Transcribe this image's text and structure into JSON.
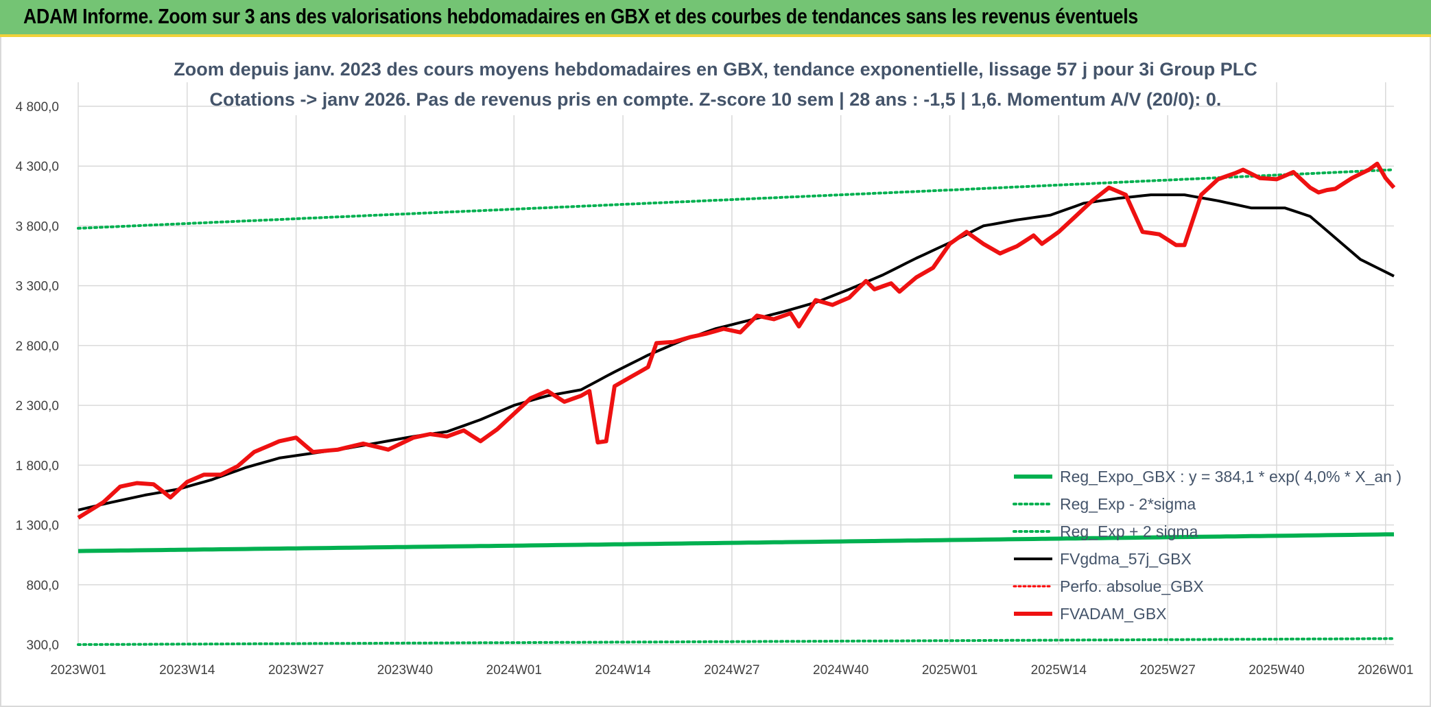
{
  "header": {
    "title": "ADAM Informe. Zoom sur 3 ans des valorisations hebdomadaires en GBX et des courbes de tendances sans les revenus éventuels"
  },
  "chart_data": {
    "type": "line",
    "title": "Zoom depuis janv. 2023 des cours moyens hebdomadaires en GBX, tendance exponentielle, lissage 57 j pour 3i Group PLC",
    "subtitle": "Cotations -> janv 2026. Pas de revenus pris en compte. Z-score 10 sem | 28 ans : -1,5 | 1,6. Momentum A/V (20/0): 0.",
    "ylim": [
      300,
      4800
    ],
    "y_ticks": [
      300,
      800,
      1300,
      1800,
      2300,
      2800,
      3300,
      3800,
      4300,
      4800
    ],
    "y_tick_labels": [
      "300,0",
      "800,0",
      "1 300,0",
      "1 800,0",
      "2 300,0",
      "2 800,0",
      "3 300,0",
      "3 800,0",
      "4 300,0",
      "4 800,0"
    ],
    "x_count": 158,
    "x_ticks": [
      0,
      13,
      26,
      39,
      52,
      65,
      78,
      91,
      104,
      117,
      130,
      143,
      156
    ],
    "x_tick_labels": [
      "2023W01",
      "2023W14",
      "2023W27",
      "2023W40",
      "2024W01",
      "2024W14",
      "2024W27",
      "2024W40",
      "2025W01",
      "2025W14",
      "2025W27",
      "2025W40",
      "2026W01"
    ],
    "grid": true,
    "legend_position": "bottom-right",
    "colors": {
      "reg_expo": "#00b050",
      "reg_minus": "#00b050",
      "reg_plus": "#00b050",
      "fvgdma": "#000000",
      "perfo": "#ff0000",
      "fvadam": "#ee1111",
      "grid": "#d9d9d9"
    },
    "series": [
      {
        "key": "reg_expo",
        "name": "Reg_Expo_GBX : y = 384,1 * exp( 4,0% *  X_an )",
        "style": "solid-thick",
        "anchors": [
          [
            0,
            1082
          ],
          [
            52,
            1127
          ],
          [
            104,
            1174
          ],
          [
            157,
            1222
          ]
        ]
      },
      {
        "key": "reg_minus",
        "name": "Reg_Exp - 2*sigma",
        "style": "dotted",
        "anchors": [
          [
            0,
            300
          ],
          [
            157,
            350
          ]
        ]
      },
      {
        "key": "reg_plus",
        "name": "Reg_Exp + 2 sigma",
        "style": "dotted",
        "anchors": [
          [
            0,
            3780
          ],
          [
            52,
            3940
          ],
          [
            104,
            4100
          ],
          [
            157,
            4270
          ]
        ]
      },
      {
        "key": "fvgdma",
        "name": "FVgdma_57j_GBX",
        "style": "solid",
        "anchors": [
          [
            0,
            1425
          ],
          [
            4,
            1490
          ],
          [
            8,
            1550
          ],
          [
            12,
            1600
          ],
          [
            16,
            1680
          ],
          [
            20,
            1780
          ],
          [
            24,
            1860
          ],
          [
            28,
            1900
          ],
          [
            32,
            1940
          ],
          [
            36,
            1990
          ],
          [
            40,
            2040
          ],
          [
            44,
            2080
          ],
          [
            48,
            2180
          ],
          [
            52,
            2300
          ],
          [
            56,
            2380
          ],
          [
            60,
            2430
          ],
          [
            64,
            2580
          ],
          [
            68,
            2720
          ],
          [
            72,
            2840
          ],
          [
            76,
            2940
          ],
          [
            80,
            3010
          ],
          [
            84,
            3080
          ],
          [
            88,
            3160
          ],
          [
            92,
            3270
          ],
          [
            96,
            3390
          ],
          [
            100,
            3530
          ],
          [
            104,
            3660
          ],
          [
            108,
            3800
          ],
          [
            112,
            3850
          ],
          [
            116,
            3890
          ],
          [
            120,
            3990
          ],
          [
            124,
            4030
          ],
          [
            128,
            4060
          ],
          [
            132,
            4060
          ],
          [
            136,
            4010
          ],
          [
            140,
            3950
          ],
          [
            144,
            3950
          ],
          [
            147,
            3880
          ],
          [
            150,
            3700
          ],
          [
            153,
            3520
          ],
          [
            157,
            3380
          ]
        ]
      },
      {
        "key": "perfo",
        "name": "Perfo. absolue_GBX",
        "style": "dotted-red",
        "anchors": []
      },
      {
        "key": "fvadam",
        "name": "FVADAM_GBX",
        "style": "solid-thick",
        "anchors": [
          [
            0,
            1360
          ],
          [
            3,
            1490
          ],
          [
            5,
            1620
          ],
          [
            7,
            1650
          ],
          [
            9,
            1640
          ],
          [
            11,
            1530
          ],
          [
            13,
            1660
          ],
          [
            15,
            1720
          ],
          [
            17,
            1720
          ],
          [
            19,
            1790
          ],
          [
            21,
            1910
          ],
          [
            24,
            2000
          ],
          [
            26,
            2030
          ],
          [
            28,
            1910
          ],
          [
            31,
            1930
          ],
          [
            34,
            1980
          ],
          [
            37,
            1930
          ],
          [
            40,
            2030
          ],
          [
            42,
            2060
          ],
          [
            44,
            2040
          ],
          [
            46,
            2090
          ],
          [
            48,
            2000
          ],
          [
            50,
            2100
          ],
          [
            52,
            2230
          ],
          [
            54,
            2360
          ],
          [
            56,
            2420
          ],
          [
            58,
            2330
          ],
          [
            60,
            2380
          ],
          [
            61,
            2420
          ],
          [
            62,
            1990
          ],
          [
            63,
            2000
          ],
          [
            64,
            2460
          ],
          [
            66,
            2540
          ],
          [
            68,
            2620
          ],
          [
            69,
            2820
          ],
          [
            71,
            2830
          ],
          [
            73,
            2870
          ],
          [
            75,
            2900
          ],
          [
            77,
            2940
          ],
          [
            79,
            2910
          ],
          [
            81,
            3050
          ],
          [
            83,
            3020
          ],
          [
            85,
            3070
          ],
          [
            86,
            2960
          ],
          [
            88,
            3180
          ],
          [
            90,
            3140
          ],
          [
            92,
            3200
          ],
          [
            94,
            3340
          ],
          [
            95,
            3270
          ],
          [
            97,
            3320
          ],
          [
            98,
            3250
          ],
          [
            100,
            3370
          ],
          [
            102,
            3450
          ],
          [
            104,
            3650
          ],
          [
            106,
            3750
          ],
          [
            108,
            3650
          ],
          [
            110,
            3570
          ],
          [
            112,
            3630
          ],
          [
            114,
            3720
          ],
          [
            115,
            3650
          ],
          [
            117,
            3750
          ],
          [
            119,
            3880
          ],
          [
            121,
            4010
          ],
          [
            123,
            4120
          ],
          [
            125,
            4060
          ],
          [
            127,
            3750
          ],
          [
            129,
            3730
          ],
          [
            131,
            3640
          ],
          [
            132,
            3640
          ],
          [
            134,
            4060
          ],
          [
            136,
            4190
          ],
          [
            138,
            4240
          ],
          [
            139,
            4270
          ],
          [
            141,
            4200
          ],
          [
            143,
            4190
          ],
          [
            145,
            4250
          ],
          [
            147,
            4120
          ],
          [
            148,
            4080
          ],
          [
            149,
            4100
          ],
          [
            150,
            4110
          ],
          [
            152,
            4200
          ],
          [
            154,
            4270
          ],
          [
            155,
            4320
          ],
          [
            156,
            4200
          ],
          [
            157,
            4120
          ]
        ]
      }
    ]
  }
}
